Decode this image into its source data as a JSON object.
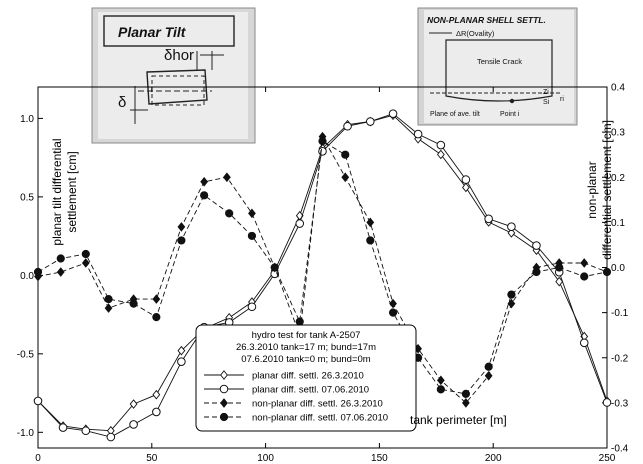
{
  "chart_data": {
    "type": "line",
    "x_range": [
      0,
      250
    ],
    "x_ticks": [
      0,
      50,
      100,
      150,
      200,
      250
    ],
    "xlabel": "tank perimeter [m]",
    "left_axis": {
      "label_lines": [
        "planar tilt differential",
        "settlement [cm]"
      ],
      "range": [
        -1.1,
        1.2
      ],
      "ticks": [
        -1.0,
        -0.5,
        0.0,
        0.5,
        1.0
      ],
      "tick_labels": [
        "-1.0",
        "-0.5",
        "0.0",
        "0.5",
        "1.0"
      ]
    },
    "right_axis": {
      "label_lines": [
        "non-planar",
        "differential settlement [cm]"
      ],
      "range": [
        -0.4,
        0.4
      ],
      "ticks": [
        -0.4,
        -0.3,
        -0.2,
        -0.1,
        0.0,
        0.1,
        0.2,
        0.3,
        0.4
      ],
      "tick_labels": [
        "-0.4",
        "-0.3",
        "-0.2",
        "-0.1",
        "0.0",
        "0.1",
        "0.2",
        "0.3",
        "0.4"
      ]
    },
    "legend": {
      "title_lines": [
        "hydro test for tank A-2507",
        "26.3.2010 tank=17 m; bund=17m",
        "07.6.2010 tank=0 m; bund=0m"
      ],
      "position": "bottom-center"
    },
    "series": [
      {
        "name": "planar diff. settl. 26.3.2010",
        "axis": "left",
        "marker": "open-diamond",
        "line": "solid",
        "x": [
          0,
          11,
          21,
          32,
          42,
          52,
          63,
          73,
          84,
          94,
          104,
          115,
          125,
          136,
          146,
          156,
          167,
          177,
          188,
          198,
          208,
          219,
          229,
          240,
          250
        ],
        "y": [
          -0.8,
          -0.96,
          -0.98,
          -0.99,
          -0.82,
          -0.76,
          -0.48,
          -0.34,
          -0.27,
          -0.17,
          0.03,
          0.38,
          0.81,
          0.96,
          0.98,
          1.02,
          0.87,
          0.77,
          0.56,
          0.34,
          0.27,
          0.16,
          -0.04,
          -0.39,
          -0.8
        ]
      },
      {
        "name": "planar diff. settl. 07.06.2010",
        "axis": "left",
        "marker": "open-circle",
        "line": "solid",
        "x": [
          0,
          11,
          21,
          32,
          42,
          52,
          63,
          73,
          84,
          94,
          104,
          115,
          125,
          136,
          146,
          156,
          167,
          177,
          188,
          198,
          208,
          219,
          229,
          240,
          250
        ],
        "y": [
          -0.8,
          -0.97,
          -0.99,
          -1.03,
          -0.95,
          -0.87,
          -0.55,
          -0.33,
          -0.3,
          -0.2,
          0.01,
          0.33,
          0.79,
          0.95,
          0.98,
          1.03,
          0.9,
          0.83,
          0.61,
          0.36,
          0.31,
          0.19,
          0.02,
          -0.43,
          -0.81
        ]
      },
      {
        "name": "non-planar diff. settl. 26.3.2010",
        "axis": "right",
        "marker": "filled-diamond",
        "line": "dashed",
        "x": [
          0,
          10,
          21,
          31,
          42,
          52,
          63,
          73,
          83,
          94,
          104,
          115,
          125,
          135,
          146,
          156,
          167,
          177,
          188,
          198,
          208,
          219,
          229,
          240,
          250
        ],
        "y": [
          -0.02,
          -0.01,
          0.01,
          -0.09,
          -0.07,
          -0.07,
          0.09,
          0.19,
          0.2,
          0.12,
          0.0,
          -0.15,
          0.29,
          0.2,
          0.1,
          -0.08,
          -0.18,
          -0.25,
          -0.3,
          -0.24,
          -0.08,
          0.0,
          0.01,
          0.01,
          -0.01
        ]
      },
      {
        "name": "non-planar diff. settl. 07.06.2010",
        "axis": "right",
        "marker": "filled-circle",
        "line": "dashed",
        "x": [
          0,
          10,
          21,
          31,
          42,
          52,
          63,
          73,
          84,
          94,
          104,
          115,
          125,
          135,
          146,
          156,
          167,
          177,
          188,
          198,
          208,
          219,
          229,
          240,
          250
        ],
        "y": [
          -0.01,
          0.02,
          0.03,
          -0.07,
          -0.08,
          -0.11,
          0.06,
          0.16,
          0.12,
          0.07,
          0.0,
          -0.12,
          0.28,
          0.25,
          0.06,
          -0.1,
          -0.2,
          -0.27,
          -0.28,
          -0.22,
          -0.06,
          -0.01,
          0.0,
          -0.02,
          -0.01
        ]
      }
    ]
  },
  "sketches": {
    "planar": {
      "title": "Planar Tilt",
      "delta_hor": "δhor",
      "delta": "δ"
    },
    "non_planar": {
      "title": "NON-PLANAR SHELL SETTL.",
      "delta_r": "ΔR(Ovality)",
      "crack": "Tensile Crack",
      "plane": "Plane of ave. tilt",
      "point": "Point i",
      "zi": "Zi",
      "si": "Si",
      "ri": "ri"
    }
  }
}
